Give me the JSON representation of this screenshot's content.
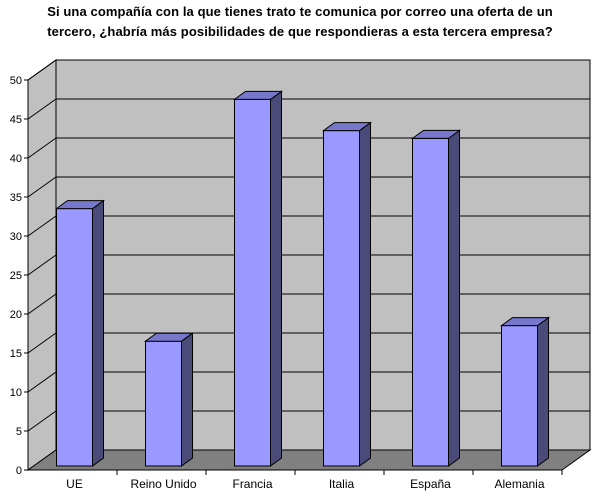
{
  "chart_data": {
    "type": "bar",
    "title_lines": [
      "Si una compañía con la que tienes trato te comunica por correo una oferta de un",
      "tercero, ¿habría más posibilidades de que respondieras a esta tercera empresa?"
    ],
    "categories": [
      "UE",
      "Reino Unido",
      "Francia",
      "Italia",
      "España",
      "Alemania"
    ],
    "values": [
      33,
      16,
      47,
      43,
      42,
      18
    ],
    "ylim": [
      0,
      50
    ],
    "yticks": [
      0,
      5,
      10,
      15,
      20,
      25,
      30,
      35,
      40,
      45,
      50
    ],
    "grid": true,
    "bar_style": "3d",
    "colors": {
      "bar_front": "#9999ff",
      "bar_side": "#4b4b7a",
      "bar_top": "#7777cc",
      "wall": "#c0c0c0",
      "floor": "#808080",
      "gridline": "#000000"
    }
  }
}
